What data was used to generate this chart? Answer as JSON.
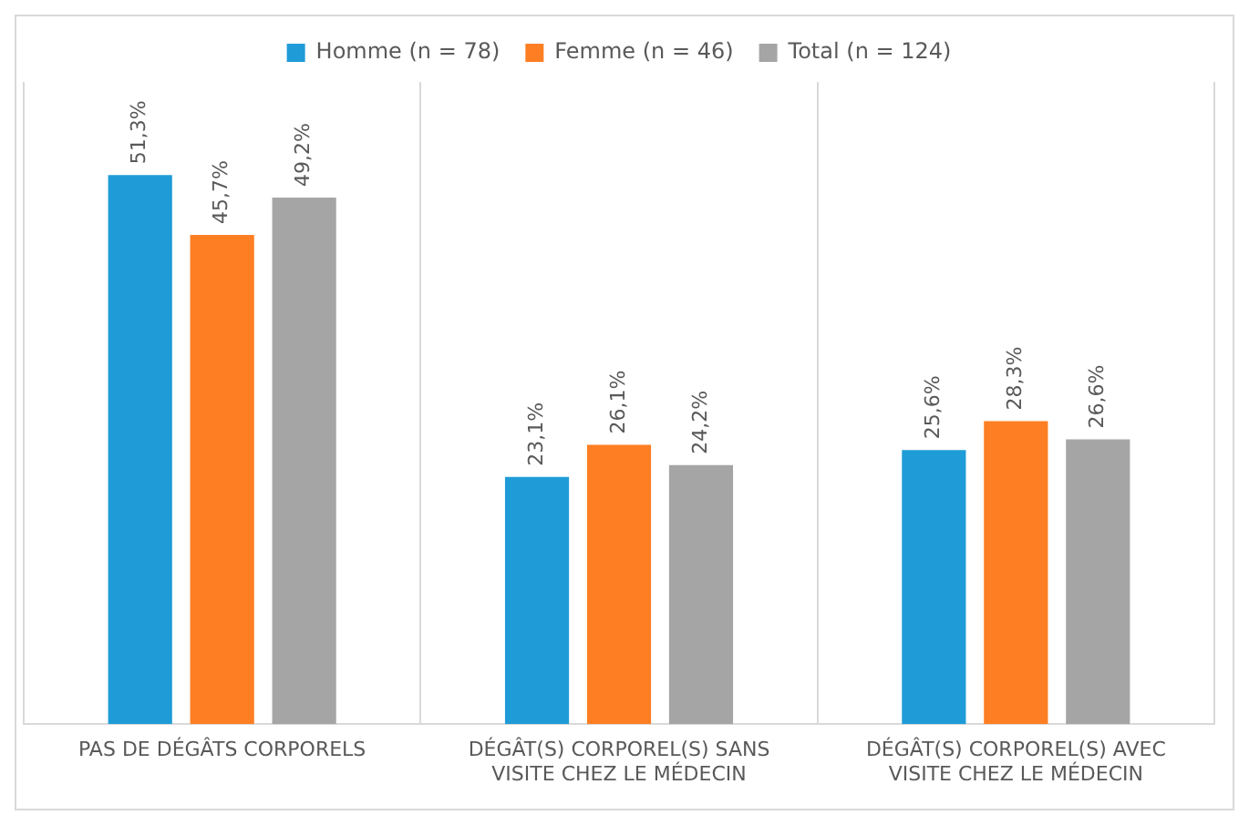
{
  "chart_data": {
    "type": "bar",
    "categories": [
      "PAS DE DÉGÂTS CORPORELS",
      "DÉGÂT(S) CORPOREL(S) SANS VISITE CHEZ LE MÉDECIN",
      "DÉGÂT(S) CORPOREL(S) AVEC VISITE CHEZ LE MÉDECIN"
    ],
    "series": [
      {
        "name": "Homme (n = 78)",
        "color": "#1f9bd7",
        "values": [
          51.3,
          23.1,
          25.6
        ],
        "value_labels": [
          "51,3%",
          "23,1%",
          "25,6%"
        ]
      },
      {
        "name": "Femme (n = 46)",
        "color": "#fd7e23",
        "values": [
          45.7,
          26.1,
          28.3
        ],
        "value_labels": [
          "45,7%",
          "26,1%",
          "28,3%"
        ]
      },
      {
        "name": "Total (n = 124)",
        "color": "#a5a5a5",
        "values": [
          49.2,
          24.2,
          26.6
        ],
        "value_labels": [
          "49,2%",
          "24,2%",
          "26,6%"
        ]
      }
    ],
    "grid": "x",
    "legend": "top",
    "tick_labels": "x"
  }
}
